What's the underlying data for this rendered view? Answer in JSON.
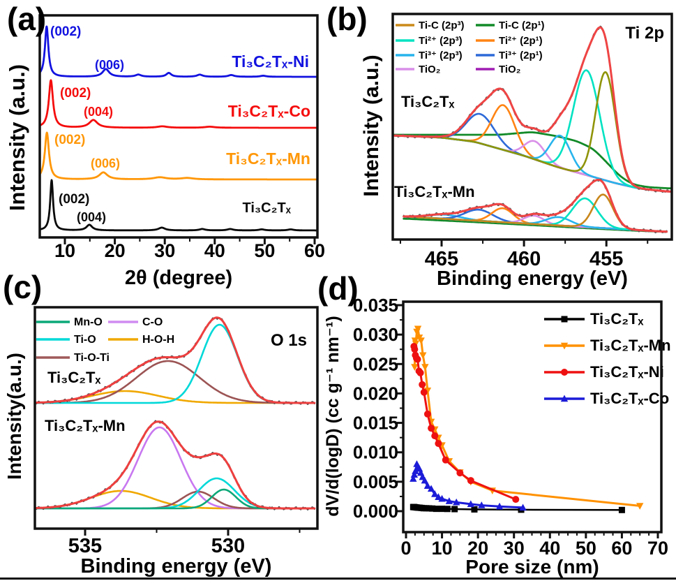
{
  "figure": {
    "background": "#ffffff"
  },
  "chart_data": [
    {
      "panel": "a",
      "panel_label": "(a)",
      "type": "line",
      "title": "XRD patterns",
      "xlabel": "2θ (degree)",
      "ylabel": "Intensity (a.u.)",
      "x_axis": {
        "range": [
          5,
          60.55
        ],
        "ticks": [
          10,
          20,
          30,
          40,
          50,
          60
        ],
        "tick_labels": [
          "10",
          "20",
          "30",
          "40",
          "50",
          "60"
        ],
        "minor_ticks": [
          15,
          25,
          35,
          45,
          55
        ]
      },
      "series": [
        {
          "name": "Ti₃C₂Tₓ-Ni",
          "color": "#1212e0",
          "baseline": 110,
          "peaks": [
            [
              6.35,
              72,
              0.42
            ],
            [
              18.2,
              11,
              0.8
            ],
            [
              24.7,
              3,
              0.7
            ],
            [
              30.8,
              5.5,
              0.6
            ],
            [
              37.0,
              3,
              0.7
            ],
            [
              43.3,
              2.5,
              0.7
            ],
            [
              49.7,
              1.5,
              0.7
            ]
          ]
        },
        {
          "name": "Ti₃C₂Tₓ-Co",
          "color": "#f50d0d",
          "baseline": 183,
          "peaks": [
            [
              7.2,
              68,
              0.5
            ],
            [
              15.7,
              11,
              1.0
            ],
            [
              29.5,
              2,
              1.2
            ],
            [
              39.0,
              1.5,
              1.2
            ]
          ]
        },
        {
          "name": "Ti₃C₂Tₓ-Mn",
          "color": "#ff9708",
          "baseline": 257,
          "peaks": [
            [
              6.4,
              67,
              0.5
            ],
            [
              17.7,
              10,
              1.0
            ],
            [
              29.0,
              3,
              1.5
            ],
            [
              34.5,
              2,
              1.5
            ]
          ]
        },
        {
          "name": "Ti₃C₂Tₓ",
          "color": "#0a0a0a",
          "baseline": 330,
          "peaks": [
            [
              7.35,
              72,
              0.35
            ],
            [
              14.9,
              8,
              0.7
            ],
            [
              29.4,
              4,
              0.8
            ],
            [
              37.5,
              2,
              0.7
            ],
            [
              43.1,
              2,
              0.7
            ],
            [
              49.4,
              1.5,
              0.7
            ],
            [
              55.2,
              1.5,
              0.7
            ]
          ]
        }
      ],
      "peak_annotations": [
        {
          "text": "(002)",
          "x": 72,
          "y": 51,
          "color": "#1212e0",
          "size": 19,
          "anchor": "start"
        },
        {
          "text": "(006)",
          "x": 157,
          "y": 99,
          "color": "#1212e0",
          "size": 18,
          "anchor": "middle"
        },
        {
          "text": "(002)",
          "x": 86,
          "y": 139,
          "color": "#f50d0d",
          "size": 19,
          "anchor": "start"
        },
        {
          "text": "(004)",
          "x": 141,
          "y": 166,
          "color": "#f50d0d",
          "size": 18,
          "anchor": "middle"
        },
        {
          "text": "(002)",
          "x": 78,
          "y": 206,
          "color": "#ff9708",
          "size": 19,
          "anchor": "start"
        },
        {
          "text": "(006)",
          "x": 151,
          "y": 240,
          "color": "#ff9708",
          "size": 18,
          "anchor": "middle"
        },
        {
          "text": "(002)",
          "x": 84,
          "y": 291,
          "color": "#0a0a0a",
          "size": 19,
          "anchor": "start"
        },
        {
          "text": "(004)",
          "x": 131,
          "y": 317,
          "color": "#0a0a0a",
          "size": 18,
          "anchor": "middle"
        }
      ],
      "series_labels": [
        {
          "text": "Ti₃C₂Tₓ-Ni",
          "x": 443,
          "y": 96,
          "color": "#1212e0",
          "size": 23,
          "anchor": "end"
        },
        {
          "text": "Ti₃C₂Tₓ-Co",
          "x": 445,
          "y": 167,
          "color": "#f50d0d",
          "size": 23,
          "anchor": "end"
        },
        {
          "text": "Ti₃C₂Tₓ-Mn",
          "x": 445,
          "y": 235,
          "color": "#ff9708",
          "size": 23,
          "anchor": "end"
        },
        {
          "text": "Ti₃C₂Tₓ",
          "x": 417,
          "y": 304,
          "color": "#0a0a0a",
          "size": 20,
          "anchor": "end"
        }
      ]
    },
    {
      "panel": "b",
      "panel_label": "(b)",
      "type": "line",
      "title": "XPS Ti 2p spectra",
      "corner_label": "Ti 2p",
      "xlabel": "Binding energy (eV)",
      "ylabel": "Intensity (a.u.)",
      "envelope_color": "#ef4444",
      "data_color": "#5a5a5a",
      "green_color": "#128a28",
      "x_axis": {
        "range": [
          468,
          451
        ],
        "reversed": true,
        "ticks": [
          465,
          460,
          455
        ],
        "tick_labels": [
          "465",
          "460",
          "455"
        ],
        "minor_ticks": [
          467.5,
          462.5,
          457.5,
          452.5
        ]
      },
      "legend_columns": [
        [
          {
            "label": "Ti-C (2p³)",
            "color": "#cc8a1a"
          },
          {
            "label": "Ti²⁺ (2p³)",
            "color": "#00e2c2"
          },
          {
            "label": "Ti³⁺ (2p³)",
            "color": "#28b4ec"
          },
          {
            "label": "TiO₂",
            "color": "#d98fe8"
          }
        ],
        [
          {
            "label": "Ti-C (2p¹)",
            "color": "#128a28"
          },
          {
            "label": "Ti²⁺ (2p¹)",
            "color": "#ff8414"
          },
          {
            "label": "Ti³⁺ (2p¹)",
            "color": "#2e6ad8"
          },
          {
            "label": "TiO₂",
            "color": "#a01eb4"
          }
        ]
      ],
      "spectra": [
        {
          "label": "Ti₃C₂Tₓ",
          "range": [
            468,
            451.05
          ],
          "baseline_color": "#a01eb4",
          "baseline": [
            [
              468,
              194
            ],
            [
              465,
              197
            ],
            [
              463,
              203
            ],
            [
              460,
              223
            ],
            [
              458,
              239
            ],
            [
              456,
              252
            ],
            [
              454.5,
              262
            ],
            [
              453,
              270
            ],
            [
              451,
              275
            ]
          ],
          "green_line": [
            [
              468,
              193
            ],
            [
              464,
              193
            ],
            [
              461.5,
              193
            ],
            [
              459.5,
              189
            ],
            [
              458,
              195
            ],
            [
              456.8,
              202
            ],
            [
              455.8,
              213
            ],
            [
              455,
              232
            ],
            [
              454.2,
              252
            ],
            [
              453.4,
              264
            ],
            [
              452.5,
              268
            ],
            [
              451,
              270
            ]
          ],
          "components": [
            {
              "color": "#2e6ad8",
              "c": 462.65,
              "h": 42,
              "s": 0.85
            },
            {
              "color": "#ff8414",
              "c": 461.25,
              "h": 64,
              "s": 0.7
            },
            {
              "color": "#d98fe8",
              "c": 459.35,
              "h": 26,
              "s": 0.62
            },
            {
              "color": "#28b4ec",
              "c": 457.8,
              "h": 46,
              "s": 0.62
            },
            {
              "color": "#00e2c2",
              "c": 456.2,
              "h": 150,
              "s": 0.8
            },
            {
              "color": "#8f9408",
              "c": 455.05,
              "h": 155,
              "s": 0.6
            }
          ],
          "envelope_extra": {
            "c": 459.8,
            "h": 16,
            "s": 2.2
          },
          "envelope_scale": 0.97
        },
        {
          "label": "Ti₃C₂Tₓ-Mn",
          "range": [
            467.3,
            451.3
          ],
          "baseline_color": "#a01eb4",
          "baseline": [
            [
              467.3,
              310
            ],
            [
              452,
              331
            ],
            [
              451.3,
              332
            ]
          ],
          "green_line": [
            [
              467.3,
              313
            ],
            [
              463,
              318
            ],
            [
              459,
              323
            ],
            [
              456,
              327
            ],
            [
              453.5,
              330
            ],
            [
              451.3,
              332
            ]
          ],
          "components": [
            {
              "color": "#28b4ec",
              "c": 464.8,
              "h": 6,
              "s": 1.0
            },
            {
              "color": "#2e6ad8",
              "c": 462.75,
              "h": 16,
              "s": 0.85
            },
            {
              "color": "#ff8414",
              "c": 461.3,
              "h": 20,
              "s": 0.65
            },
            {
              "color": "#d98fe8",
              "c": 459.4,
              "h": 12,
              "s": 0.6
            },
            {
              "color": "#28b4ec",
              "c": 457.9,
              "h": 12,
              "s": 0.75
            },
            {
              "color": "#00e2c2",
              "c": 456.3,
              "h": 41,
              "s": 0.75
            },
            {
              "color": "#c8861a",
              "c": 455.2,
              "h": 48,
              "s": 0.6
            }
          ],
          "envelope_scale": 1.05
        }
      ]
    },
    {
      "panel": "c",
      "panel_label": "(c)",
      "type": "line",
      "title": "XPS O 1s spectra",
      "corner_label": "O 1s",
      "xlabel": "Binding energy (eV)",
      "ylabel": "Intensity(a.u.)",
      "envelope_color": "#ee3f3f",
      "data_color": "#4a4a4a",
      "x_axis": {
        "range": [
          536.7,
          526.95
        ],
        "reversed": true,
        "ticks": [
          535,
          530
        ],
        "tick_labels": [
          "535",
          "530"
        ],
        "minor_ticks": [
          532.5,
          527.5
        ]
      },
      "legend_columns": [
        [
          {
            "label": "Mn-O",
            "color": "#0ca878"
          },
          {
            "label": "Ti-O",
            "color": "#00d8d8"
          },
          {
            "label": "Ti-O-Ti",
            "color": "#a05a5a"
          }
        ],
        [
          {
            "label": "C-O",
            "color": "#d08cf0"
          },
          {
            "label": "H-O-H",
            "color": "#f0a800"
          }
        ]
      ],
      "spectra": [
        {
          "label": "Ti₃C₂Tₓ",
          "range": [
            536.7,
            526.95
          ],
          "baseline": [
            [
              536.7,
              577
            ],
            [
              526.95,
              577
            ]
          ],
          "components": [
            {
              "color": "#f0a800",
              "c": 533.6,
              "h": 17,
              "s": 1.15
            },
            {
              "color": "#9c5454",
              "c": 532.1,
              "h": 60,
              "s": 1.1
            },
            {
              "color": "#00d8d8",
              "c": 530.3,
              "h": 112,
              "s": 0.62
            }
          ],
          "envelope_scale": 0.95
        },
        {
          "label": "Ti₃C₂Tₓ-Mn",
          "range": [
            536.7,
            526.95
          ],
          "baseline": [
            [
              536.7,
              728
            ],
            [
              526.95,
              728
            ]
          ],
          "components": [
            {
              "color": "#f0a800",
              "c": 533.75,
              "h": 25,
              "s": 1.05
            },
            {
              "color": "#c878f0",
              "c": 532.4,
              "h": 116,
              "s": 0.75
            },
            {
              "color": "#9c5454",
              "c": 531.05,
              "h": 24,
              "s": 0.55
            },
            {
              "color": "#00d8d8",
              "c": 530.4,
              "h": 43,
              "s": 0.62
            },
            {
              "color": "#0ca878",
              "c": 530.15,
              "h": 27,
              "s": 0.42
            }
          ],
          "envelope_scale": 0.97
        }
      ]
    },
    {
      "panel": "d",
      "panel_label": "(d)",
      "type": "scatter",
      "title": "Pore size distribution",
      "xlabel": "Pore size (nm)",
      "ylabel": "dV/d(logD) (cc g⁻¹ nm⁻¹)",
      "x_axis": {
        "range": [
          0,
          71
        ],
        "ticks": [
          0,
          10,
          20,
          30,
          40,
          50,
          60,
          70
        ],
        "tick_labels": [
          "0",
          "10",
          "20",
          "30",
          "40",
          "50",
          "60",
          "70"
        ],
        "minor_step": 2.5
      },
      "y_axis": {
        "range": [
          0,
          0.035
        ],
        "ticks": [
          0,
          0.005,
          0.01,
          0.015,
          0.02,
          0.025,
          0.03,
          0.035
        ],
        "tick_labels": [
          "0.000",
          "0.005",
          "0.010",
          "0.015",
          "0.020",
          "0.025",
          "0.030",
          "0.035"
        ],
        "minor_step": 0.0025
      },
      "series": [
        {
          "name": "Ti₃C₂Tₓ",
          "color": "#000000",
          "marker": "square",
          "x": [
            2,
            2.2,
            2.4,
            2.7,
            3,
            3.4,
            3.8,
            4.3,
            4.9,
            5.6,
            6.4,
            7.3,
            8.4,
            10,
            11.5,
            13.5,
            19,
            32,
            60
          ],
          "y": [
            0.0007,
            0.0007,
            0.00068,
            0.00065,
            0.00062,
            0.0006,
            0.00058,
            0.00055,
            0.0005,
            0.0005,
            0.00048,
            0.00045,
            0.0004,
            0.0004,
            0.00038,
            0.00035,
            0.0003,
            0.00025,
            0.0002
          ]
        },
        {
          "name": "Ti₃C₂Tₓ-Mn",
          "color": "#ff9100",
          "marker": "triangle-down",
          "x": [
            2.4,
            2.5,
            2.7,
            3.0,
            3.3,
            3.7,
            4.2,
            4.7,
            5.3,
            6,
            7,
            8,
            9,
            10,
            12,
            15,
            18,
            24,
            65
          ],
          "y": [
            0.0245,
            0.029,
            0.0285,
            0.0305,
            0.031,
            0.0295,
            0.029,
            0.0265,
            0.0245,
            0.0205,
            0.0152,
            0.0139,
            0.0125,
            0.0112,
            0.0085,
            0.0066,
            0.005,
            0.0035,
            0.0009
          ]
        },
        {
          "name": "Ti₃C₂Tₓ-Ni",
          "color": "#ee1111",
          "marker": "circle",
          "x": [
            2.2,
            2.4,
            2.6,
            2.9,
            3.2,
            3.6,
            4.0,
            4.5,
            5,
            6,
            7,
            8,
            9,
            11,
            15,
            18,
            30.5
          ],
          "y": [
            0.028,
            0.0275,
            0.0265,
            0.026,
            0.0258,
            0.0238,
            0.0235,
            0.0215,
            0.0202,
            0.0165,
            0.0141,
            0.0128,
            0.0115,
            0.0087,
            0.0065,
            0.0052,
            0.002
          ]
        },
        {
          "name": "Ti₃C₂Tₓ-Co",
          "color": "#1b1bd8",
          "marker": "triangle-up",
          "x": [
            2,
            2.3,
            2.6,
            3,
            3.3,
            3.7,
            4.1,
            4.6,
            5.2,
            6,
            7,
            8,
            9,
            10,
            12,
            14,
            18,
            21,
            26,
            32.5
          ],
          "y": [
            0.0055,
            0.0062,
            0.0068,
            0.008,
            0.0075,
            0.0072,
            0.0065,
            0.0058,
            0.0052,
            0.0043,
            0.0038,
            0.0029,
            0.0024,
            0.0021,
            0.0017,
            0.0015,
            0.0012,
            0.001,
            0.0008,
            0.0006
          ]
        }
      ]
    }
  ]
}
